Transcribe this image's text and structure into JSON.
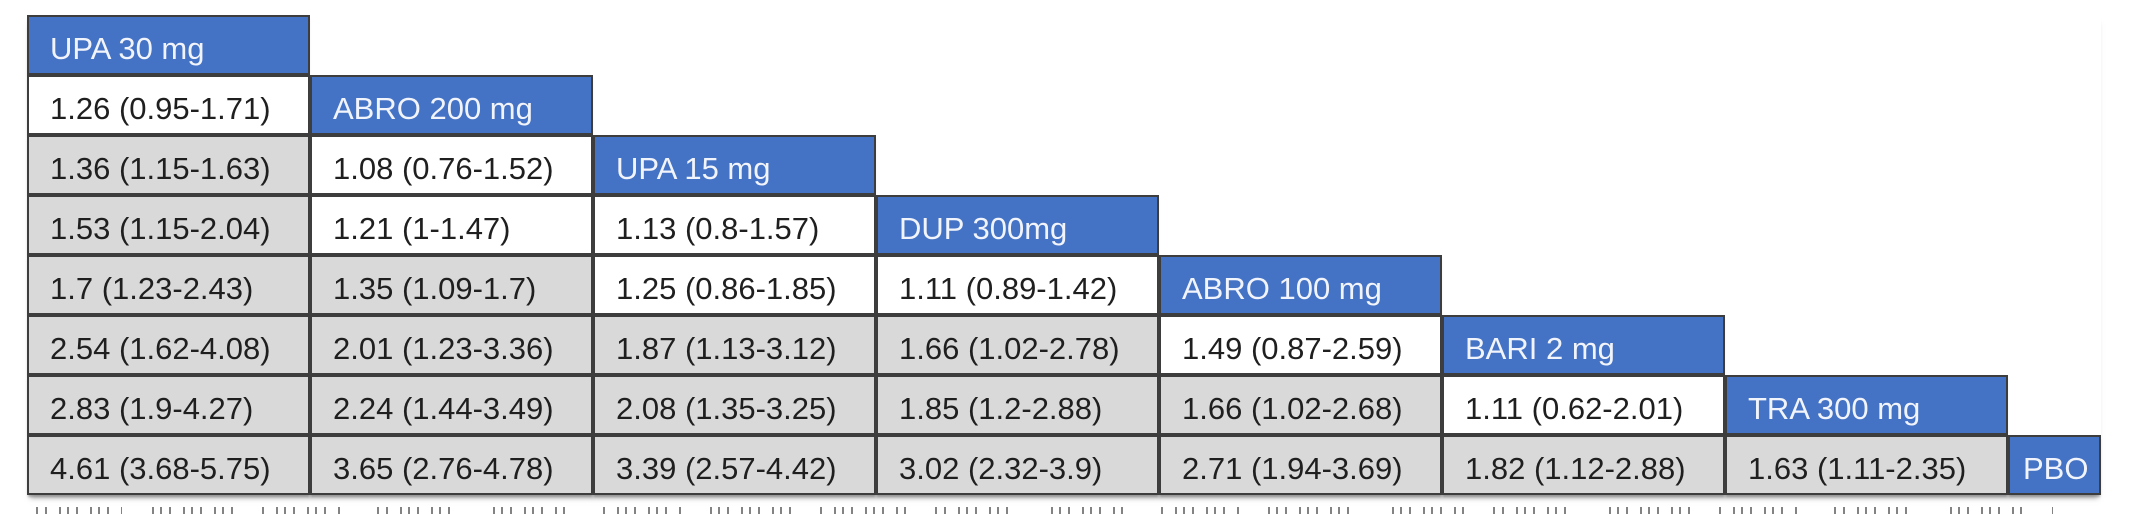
{
  "colors": {
    "header_bg": "#4472c4",
    "header_text": "#f2f4fb",
    "significant_bg": "#d9d9d9",
    "nonsignificant_bg": "#ffffff",
    "border": "#3d3d3d",
    "cell_text": "#1f1f1f"
  },
  "chart_data": {
    "type": "table",
    "subtype": "network-meta-analysis-league-table-lower-triangular",
    "title": "",
    "treatments": [
      "UPA 30 mg",
      "ABRO 200 mg",
      "UPA 15 mg",
      "DUP 300mg",
      "ABRO 100 mg",
      "BARI 2 mg",
      "TRA 300 mg",
      "PBO"
    ],
    "shading_note_visual": "gray cells = confidence interval excludes 1; white cells = interval includes 1",
    "rows": [
      {
        "treatment": "UPA 30 mg",
        "cells": []
      },
      {
        "treatment": "ABRO 200 mg",
        "cells": [
          {
            "text": "1.26 (0.95-1.71)",
            "estimate": 1.26,
            "ci_low": 0.95,
            "ci_high": 1.71,
            "shaded": false
          }
        ]
      },
      {
        "treatment": "UPA 15 mg",
        "cells": [
          {
            "text": "1.36 (1.15-1.63)",
            "estimate": 1.36,
            "ci_low": 1.15,
            "ci_high": 1.63,
            "shaded": true
          },
          {
            "text": "1.08 (0.76-1.52)",
            "estimate": 1.08,
            "ci_low": 0.76,
            "ci_high": 1.52,
            "shaded": false
          }
        ]
      },
      {
        "treatment": "DUP 300mg",
        "cells": [
          {
            "text": "1.53 (1.15-2.04)",
            "estimate": 1.53,
            "ci_low": 1.15,
            "ci_high": 2.04,
            "shaded": true
          },
          {
            "text": "1.21 (1-1.47)",
            "estimate": 1.21,
            "ci_low": 1,
            "ci_high": 1.47,
            "shaded": false
          },
          {
            "text": "1.13 (0.8-1.57)",
            "estimate": 1.13,
            "ci_low": 0.8,
            "ci_high": 1.57,
            "shaded": false
          }
        ]
      },
      {
        "treatment": "ABRO 100 mg",
        "cells": [
          {
            "text": "1.7 (1.23-2.43)",
            "estimate": 1.7,
            "ci_low": 1.23,
            "ci_high": 2.43,
            "shaded": true
          },
          {
            "text": "1.35 (1.09-1.7)",
            "estimate": 1.35,
            "ci_low": 1.09,
            "ci_high": 1.7,
            "shaded": true
          },
          {
            "text": "1.25 (0.86-1.85)",
            "estimate": 1.25,
            "ci_low": 0.86,
            "ci_high": 1.85,
            "shaded": false
          },
          {
            "text": "1.11 (0.89-1.42)",
            "estimate": 1.11,
            "ci_low": 0.89,
            "ci_high": 1.42,
            "shaded": false
          }
        ]
      },
      {
        "treatment": "BARI 2 mg",
        "cells": [
          {
            "text": "2.54 (1.62-4.08)",
            "estimate": 2.54,
            "ci_low": 1.62,
            "ci_high": 4.08,
            "shaded": true
          },
          {
            "text": "2.01 (1.23-3.36)",
            "estimate": 2.01,
            "ci_low": 1.23,
            "ci_high": 3.36,
            "shaded": true
          },
          {
            "text": "1.87 (1.13-3.12)",
            "estimate": 1.87,
            "ci_low": 1.13,
            "ci_high": 3.12,
            "shaded": true
          },
          {
            "text": "1.66 (1.02-2.78)",
            "estimate": 1.66,
            "ci_low": 1.02,
            "ci_high": 2.78,
            "shaded": true
          },
          {
            "text": "1.49 (0.87-2.59)",
            "estimate": 1.49,
            "ci_low": 0.87,
            "ci_high": 2.59,
            "shaded": false
          }
        ]
      },
      {
        "treatment": "TRA 300 mg",
        "cells": [
          {
            "text": "2.83 (1.9-4.27)",
            "estimate": 2.83,
            "ci_low": 1.9,
            "ci_high": 4.27,
            "shaded": true
          },
          {
            "text": "2.24 (1.44-3.49)",
            "estimate": 2.24,
            "ci_low": 1.44,
            "ci_high": 3.49,
            "shaded": true
          },
          {
            "text": "2.08 (1.35-3.25)",
            "estimate": 2.08,
            "ci_low": 1.35,
            "ci_high": 3.25,
            "shaded": true
          },
          {
            "text": "1.85 (1.2-2.88)",
            "estimate": 1.85,
            "ci_low": 1.2,
            "ci_high": 2.88,
            "shaded": true
          },
          {
            "text": "1.66 (1.02-2.68)",
            "estimate": 1.66,
            "ci_low": 1.02,
            "ci_high": 2.68,
            "shaded": true
          },
          {
            "text": "1.11 (0.62-2.01)",
            "estimate": 1.11,
            "ci_low": 0.62,
            "ci_high": 2.01,
            "shaded": false
          }
        ]
      },
      {
        "treatment": "PBO",
        "cells": [
          {
            "text": "4.61 (3.68-5.75)",
            "estimate": 4.61,
            "ci_low": 3.68,
            "ci_high": 5.75,
            "shaded": true
          },
          {
            "text": "3.65 (2.76-4.78)",
            "estimate": 3.65,
            "ci_low": 2.76,
            "ci_high": 4.78,
            "shaded": true
          },
          {
            "text": "3.39 (2.57-4.42)",
            "estimate": 3.39,
            "ci_low": 2.57,
            "ci_high": 4.42,
            "shaded": true
          },
          {
            "text": "3.02 (2.32-3.9)",
            "estimate": 3.02,
            "ci_low": 2.32,
            "ci_high": 3.9,
            "shaded": true
          },
          {
            "text": "2.71 (1.94-3.69)",
            "estimate": 2.71,
            "ci_low": 1.94,
            "ci_high": 3.69,
            "shaded": true
          },
          {
            "text": "1.82 (1.12-2.88)",
            "estimate": 1.82,
            "ci_low": 1.12,
            "ci_high": 2.88,
            "shaded": true
          },
          {
            "text": "1.63 (1.11-2.35)",
            "estimate": 1.63,
            "ci_low": 1.11,
            "ci_high": 2.35,
            "shaded": true
          }
        ]
      }
    ]
  }
}
